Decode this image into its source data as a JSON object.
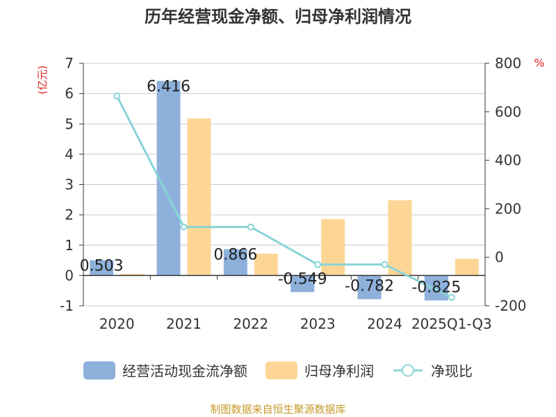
{
  "chart_data": {
    "type": "bar",
    "title": "历年经营现金净额、归母净利润情况",
    "categories": [
      "2020",
      "2021",
      "2022",
      "2023",
      "2024",
      "2025Q1-Q3"
    ],
    "left_axis": {
      "unit": "(亿元)",
      "ylim": [
        -1,
        7
      ],
      "ticks": [
        "-1",
        "0",
        "1",
        "2",
        "3",
        "4",
        "5",
        "6",
        "7"
      ]
    },
    "right_axis": {
      "unit": "%",
      "ylim": [
        -200,
        800
      ],
      "ticks": [
        "-200",
        "0",
        "200",
        "400",
        "600",
        "800"
      ]
    },
    "series": [
      {
        "name": "经营活动现金流净额",
        "type": "bar",
        "axis": "left",
        "color": "#8eb1dc",
        "values": [
          0.503,
          6.416,
          0.866,
          -0.549,
          -0.782,
          -0.825
        ],
        "labels": [
          "0.503",
          "6.416",
          "0.866",
          "-0.549",
          "-0.782",
          "-0.825"
        ]
      },
      {
        "name": "归母净利润",
        "type": "bar",
        "axis": "left",
        "color": "#fdd696",
        "values": [
          0.05,
          5.18,
          0.72,
          1.86,
          2.48,
          0.55
        ]
      },
      {
        "name": "净现比",
        "type": "line",
        "axis": "right",
        "color": "#88d4d6",
        "values": [
          665,
          125,
          125,
          -30,
          -30,
          -165
        ]
      }
    ],
    "grid": true,
    "legend": "bottom"
  },
  "source": "制图数据来自恒生聚源数据库"
}
